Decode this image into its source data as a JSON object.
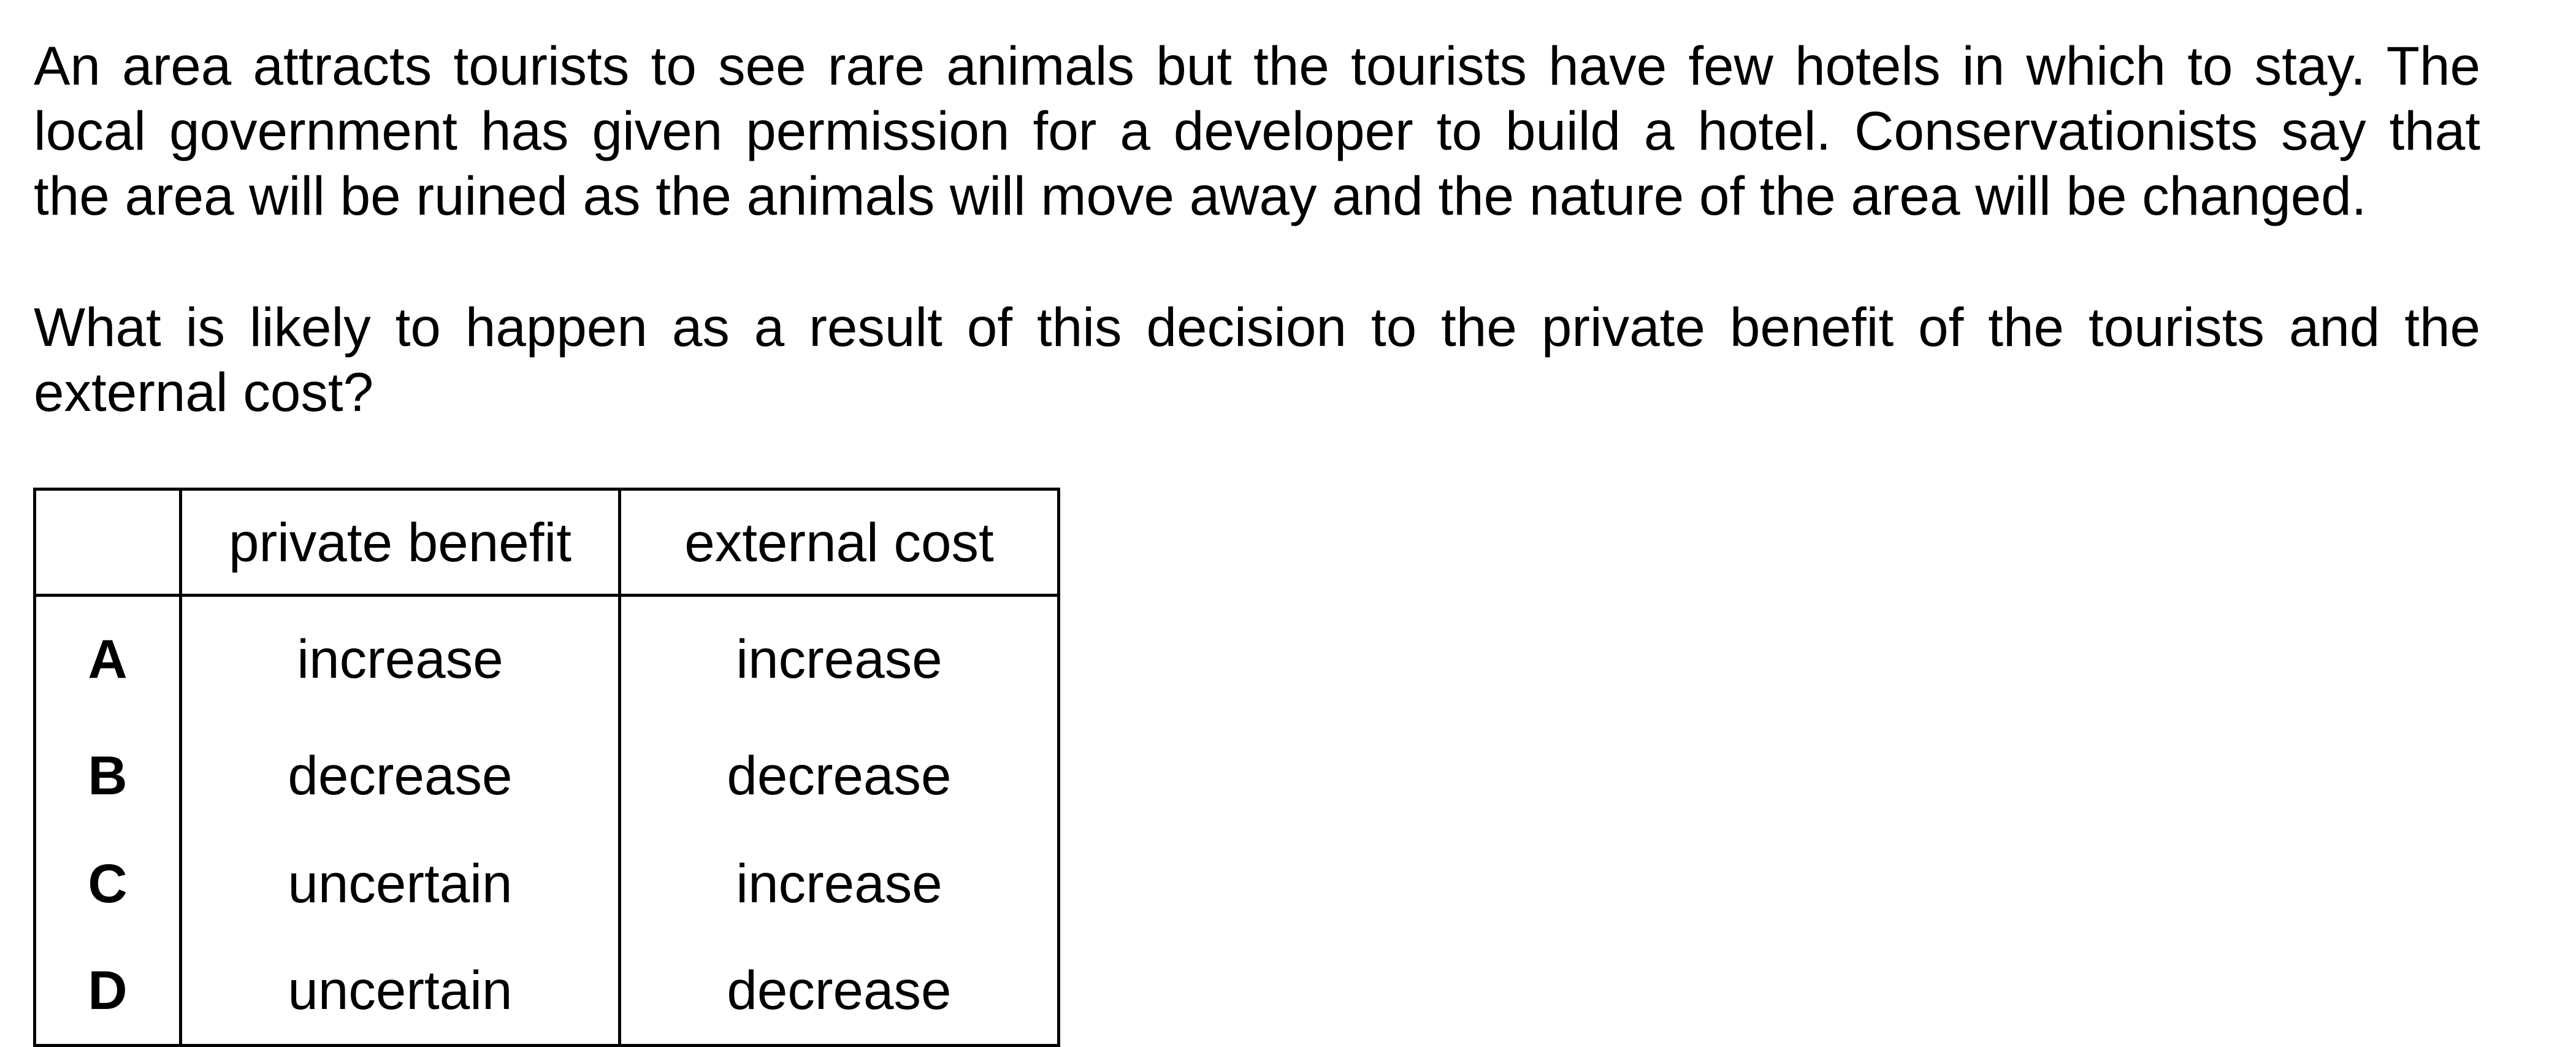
{
  "question": {
    "paragraph1": {
      "line1": "An area attracts tourists to see rare animals but the tourists have few hotels in which to stay. The",
      "line2": "local government has given permission for a developer to build a hotel. Conservationists say that",
      "line3": "the area will be ruined as the animals will move away and the nature of the area will be changed."
    },
    "paragraph2": {
      "line1": "What is likely to happen as a result of this decision to the private benefit of the tourists and the",
      "line2": "external cost?"
    }
  },
  "table": {
    "headers": [
      "",
      "private benefit",
      "external cost"
    ],
    "rows": [
      {
        "letter": "A",
        "private_benefit": "increase",
        "external_cost": "increase"
      },
      {
        "letter": "B",
        "private_benefit": "decrease",
        "external_cost": "decrease"
      },
      {
        "letter": "C",
        "private_benefit": "uncertain",
        "external_cost": "increase"
      },
      {
        "letter": "D",
        "private_benefit": "uncertain",
        "external_cost": "decrease"
      }
    ]
  }
}
